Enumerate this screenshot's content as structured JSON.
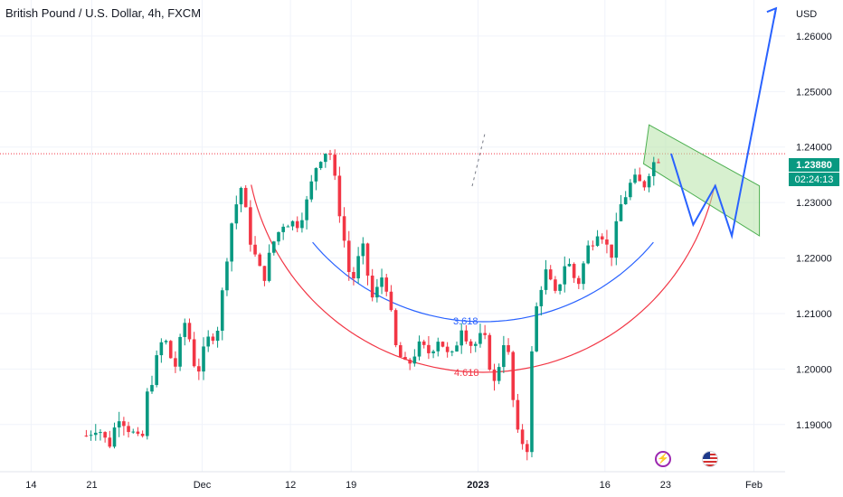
{
  "header": {
    "title": "British Pound / U.S. Dollar, 4h, FXCM"
  },
  "currency_label": "USD",
  "price_tag": {
    "value": "1.23880",
    "timer": "02:24:13"
  },
  "events": [
    {
      "icon": "lightning-icon",
      "color": "#9c27b0"
    },
    {
      "icon": "us-flag-icon",
      "color": "#d32f2f"
    }
  ],
  "colors": {
    "up": "#089981",
    "down": "#f23645",
    "grid": "#f0f3fa",
    "price_line": "#f23645",
    "projection": "#2962ff",
    "arc_outer": "#f23645",
    "arc_inner": "#2962ff",
    "channel_fill": "#b7e4a8",
    "channel_stroke": "#4caf50"
  },
  "chart_data": {
    "type": "candlestick",
    "symbol": "GBPUSD",
    "timeframe": "4h",
    "y_axis": {
      "ticks": [
        "1.26000",
        "1.25000",
        "1.24000",
        "1.23000",
        "1.22000",
        "1.21000",
        "1.20000",
        "1.19000"
      ],
      "range": [
        1.1815,
        1.2665
      ]
    },
    "x_axis": {
      "ticks": [
        "14",
        "21",
        "Dec",
        "12",
        "19",
        "2023",
        "16",
        "23",
        "Feb"
      ]
    },
    "last_price": 1.2388,
    "price_path": [
      [
        14,
        1.188
      ],
      [
        16,
        1.19
      ],
      [
        18,
        1.186
      ],
      [
        20,
        1.192
      ],
      [
        22,
        1.189
      ],
      [
        24,
        1.186
      ],
      [
        25,
        1.195
      ],
      [
        28,
        1.206
      ],
      [
        30,
        1.2
      ],
      [
        32,
        1.209
      ],
      [
        34,
        1.199
      ],
      [
        36,
        1.205
      ],
      [
        38,
        1.208
      ],
      [
        40,
        1.225
      ],
      [
        42,
        1.233
      ],
      [
        44,
        1.222
      ],
      [
        46,
        1.216
      ],
      [
        48,
        1.223
      ],
      [
        50,
        1.227
      ],
      [
        52,
        1.226
      ],
      [
        54,
        1.23
      ],
      [
        56,
        1.238
      ],
      [
        58,
        1.24
      ],
      [
        60,
        1.228
      ],
      [
        62,
        1.215
      ],
      [
        64,
        1.222
      ],
      [
        66,
        1.212
      ],
      [
        68,
        1.218
      ],
      [
        70,
        1.204
      ],
      [
        72,
        1.2
      ],
      [
        74,
        1.204
      ],
      [
        76,
        1.203
      ],
      [
        78,
        1.206
      ],
      [
        80,
        1.201
      ],
      [
        82,
        1.208
      ],
      [
        84,
        1.204
      ],
      [
        86,
        1.206
      ],
      [
        88,
        1.197
      ],
      [
        90,
        1.207
      ],
      [
        92,
        1.188
      ],
      [
        94,
        1.186
      ],
      [
        95,
        1.208
      ],
      [
        97,
        1.218
      ],
      [
        99,
        1.213
      ],
      [
        101,
        1.22
      ],
      [
        103,
        1.215
      ],
      [
        105,
        1.222
      ],
      [
        107,
        1.226
      ],
      [
        109,
        1.22
      ],
      [
        111,
        1.23
      ],
      [
        113,
        1.234
      ],
      [
        115,
        1.233
      ],
      [
        116,
        1.236
      ],
      [
        118,
        1.2388
      ]
    ],
    "annotations": [
      {
        "label": "3.618",
        "color": "#2962ff"
      },
      {
        "label": "4.618",
        "color": "#f23645"
      }
    ],
    "projection": [
      [
        120,
        1.2388
      ],
      [
        124,
        1.226
      ],
      [
        128,
        1.233
      ],
      [
        131,
        1.224
      ],
      [
        139,
        1.265
      ]
    ],
    "channel_corners": [
      [
        116,
        1.244
      ],
      [
        136,
        1.233
      ],
      [
        136,
        1.224
      ],
      [
        115,
        1.237
      ]
    ]
  }
}
